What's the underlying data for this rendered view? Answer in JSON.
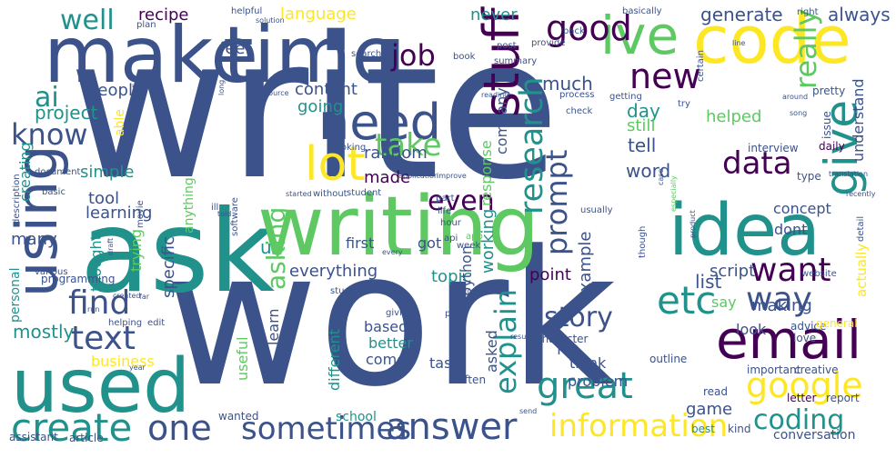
{
  "cloud": {
    "background": "#ffffff",
    "palette": [
      "#440154",
      "#3b528b",
      "#21918c",
      "#5ec962",
      "#fde725"
    ],
    "words": [
      {
        "text": "write"
      },
      {
        "text": "work"
      },
      {
        "text": "ask"
      },
      {
        "text": "time"
      },
      {
        "text": "make"
      },
      {
        "text": "code"
      },
      {
        "text": "writing"
      },
      {
        "text": "idea"
      },
      {
        "text": "using"
      },
      {
        "text": "used"
      },
      {
        "text": "ive"
      },
      {
        "text": "email"
      },
      {
        "text": "need"
      },
      {
        "text": "lot"
      },
      {
        "text": "stuff"
      },
      {
        "text": "give"
      },
      {
        "text": "create"
      },
      {
        "text": "answer"
      },
      {
        "text": "research"
      },
      {
        "text": "know"
      },
      {
        "text": "google"
      },
      {
        "text": "one"
      },
      {
        "text": "etc"
      },
      {
        "text": "great"
      },
      {
        "text": "information"
      },
      {
        "text": "sometimes"
      },
      {
        "text": "text"
      },
      {
        "text": "find"
      },
      {
        "text": "really"
      },
      {
        "text": "good"
      },
      {
        "text": "new"
      },
      {
        "text": "way"
      },
      {
        "text": "want"
      },
      {
        "text": "well"
      },
      {
        "text": "take"
      },
      {
        "text": "job"
      },
      {
        "text": "prompt"
      },
      {
        "text": "story"
      },
      {
        "text": "explain"
      },
      {
        "text": "coding"
      },
      {
        "text": "data"
      },
      {
        "text": "even"
      },
      {
        "text": "asking"
      },
      {
        "text": "ai"
      },
      {
        "text": "project"
      },
      {
        "text": "generate"
      },
      {
        "text": "always"
      },
      {
        "text": "recipe"
      },
      {
        "text": "language"
      },
      {
        "text": "never"
      },
      {
        "text": "feel"
      },
      {
        "text": "people"
      },
      {
        "text": "content"
      },
      {
        "text": "much"
      },
      {
        "text": "going"
      },
      {
        "text": "company"
      },
      {
        "text": "day"
      },
      {
        "text": "still"
      },
      {
        "text": "tell"
      },
      {
        "text": "word"
      },
      {
        "text": "helped"
      },
      {
        "text": "understand"
      },
      {
        "text": "creating"
      },
      {
        "text": "able"
      },
      {
        "text": "simple"
      },
      {
        "text": "tool"
      },
      {
        "text": "learning"
      },
      {
        "text": "made"
      },
      {
        "text": "random"
      },
      {
        "text": "working"
      },
      {
        "text": "response"
      },
      {
        "text": "thought"
      },
      {
        "text": "many"
      },
      {
        "text": "specific"
      },
      {
        "text": "trying"
      },
      {
        "text": "everything"
      },
      {
        "text": "topic"
      },
      {
        "text": "point"
      },
      {
        "text": "list"
      },
      {
        "text": "script"
      },
      {
        "text": "example"
      },
      {
        "text": "concept"
      },
      {
        "text": "dont"
      },
      {
        "text": "making"
      },
      {
        "text": "first"
      },
      {
        "text": "got"
      },
      {
        "text": "python"
      },
      {
        "text": "actually"
      },
      {
        "text": "say"
      },
      {
        "text": "look"
      },
      {
        "text": "mostly"
      },
      {
        "text": "learn"
      },
      {
        "text": "based"
      },
      {
        "text": "better"
      },
      {
        "text": "come"
      },
      {
        "text": "asked"
      },
      {
        "text": "task"
      },
      {
        "text": "fun"
      },
      {
        "text": "different"
      },
      {
        "text": "think"
      },
      {
        "text": "game"
      },
      {
        "text": "business"
      },
      {
        "text": "useful"
      },
      {
        "text": "problem"
      },
      {
        "text": "personal"
      },
      {
        "text": "programming"
      },
      {
        "text": "anything"
      },
      {
        "text": "u"
      },
      {
        "text": "school"
      },
      {
        "text": "wanted"
      },
      {
        "text": "read"
      },
      {
        "text": "letter"
      },
      {
        "text": "report"
      },
      {
        "text": "conversation"
      },
      {
        "text": "best"
      },
      {
        "text": "kind"
      },
      {
        "text": "outline"
      },
      {
        "text": "often"
      },
      {
        "text": "advice"
      },
      {
        "text": "love"
      },
      {
        "text": "general"
      },
      {
        "text": "important"
      },
      {
        "text": "creative"
      },
      {
        "text": "character"
      },
      {
        "text": "assistant"
      },
      {
        "text": "article"
      },
      {
        "text": "pretty"
      },
      {
        "text": "issue"
      },
      {
        "text": "daily"
      },
      {
        "text": "interview"
      },
      {
        "text": "type"
      },
      {
        "text": "helpful"
      },
      {
        "text": "basically"
      },
      {
        "text": "right"
      },
      {
        "text": "plan"
      },
      {
        "text": "solution"
      },
      {
        "text": "back"
      },
      {
        "text": "provide"
      },
      {
        "text": "post"
      },
      {
        "text": "certain"
      },
      {
        "text": "line"
      },
      {
        "text": "book"
      },
      {
        "text": "search"
      },
      {
        "text": "summary"
      },
      {
        "text": "process"
      },
      {
        "text": "getting"
      },
      {
        "text": "try"
      },
      {
        "text": "check"
      },
      {
        "text": "reading"
      },
      {
        "text": "around"
      },
      {
        "text": "song"
      },
      {
        "text": "file"
      },
      {
        "text": "teacher"
      },
      {
        "text": "see"
      },
      {
        "text": "long"
      },
      {
        "text": "looking"
      },
      {
        "text": "document"
      },
      {
        "text": "description"
      },
      {
        "text": "basic"
      },
      {
        "text": "movie"
      },
      {
        "text": "ill"
      },
      {
        "text": "told"
      },
      {
        "text": "software"
      },
      {
        "text": "started"
      },
      {
        "text": "without"
      },
      {
        "text": "student"
      },
      {
        "text": "application"
      },
      {
        "text": "improve"
      },
      {
        "text": "part"
      },
      {
        "text": "life"
      },
      {
        "text": "hour"
      },
      {
        "text": "usually"
      },
      {
        "text": "product"
      },
      {
        "text": "case"
      },
      {
        "text": "especially"
      },
      {
        "text": "though"
      },
      {
        "text": "api"
      },
      {
        "text": "app"
      },
      {
        "text": "week"
      },
      {
        "text": "every"
      },
      {
        "text": "draft"
      },
      {
        "text": "various"
      },
      {
        "text": "created"
      },
      {
        "text": "far"
      },
      {
        "text": "run"
      },
      {
        "text": "helping"
      },
      {
        "text": "edit"
      },
      {
        "text": "study"
      },
      {
        "text": "giving"
      },
      {
        "text": "put"
      },
      {
        "text": "website"
      },
      {
        "text": "detail"
      },
      {
        "text": "year"
      },
      {
        "text": "send"
      },
      {
        "text": "result"
      },
      {
        "text": "translation"
      },
      {
        "text": "recently"
      },
      {
        "text": "source"
      },
      {
        "text": "complex"
      }
    ]
  }
}
